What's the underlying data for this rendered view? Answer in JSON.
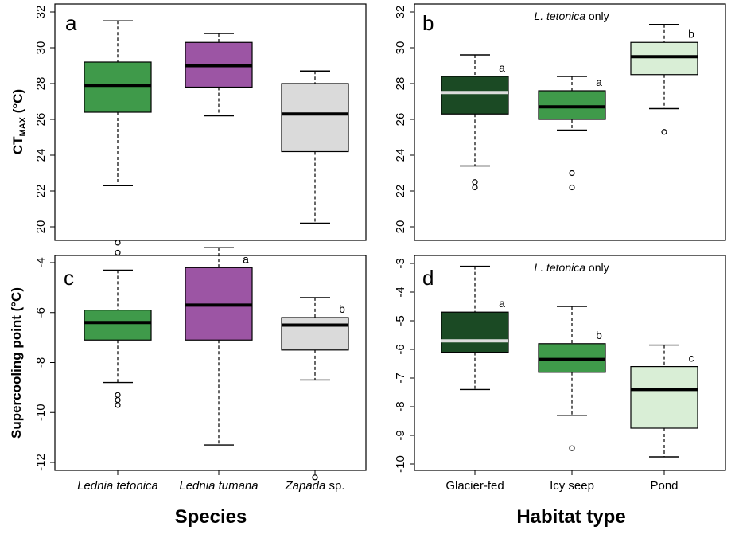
{
  "colors": {
    "lt": "#3f9a4a",
    "ltum": "#9c55a4",
    "zap": "#dadada",
    "glacier": "#1b4a24",
    "seep": "#3f9a4a",
    "pond": "#d9eed6",
    "median_dark": "#000000",
    "median_light": "#dddddd"
  },
  "shared": {
    "x_species_title": "Species",
    "x_habitat_title": "Habitat type",
    "species_labels": [
      {
        "italic": "Lednia tetonica",
        "plain": ""
      },
      {
        "italic": "Lednia tumana",
        "plain": ""
      },
      {
        "italic": "Zapada",
        "plain": " sp."
      }
    ],
    "habitat_labels": [
      "Glacier-fed",
      "Icy seep",
      "Pond"
    ],
    "ylabel_ct_main": "CT",
    "ylabel_ct_sub": "MAX",
    "ylabel_ct_unit": " (°C)",
    "ylabel_scp": "Supercooling point (°C)"
  },
  "chart_data": [
    {
      "panel": "a",
      "type": "box",
      "categories": [
        "Lednia tetonica",
        "Lednia tumana",
        "Zapada sp."
      ],
      "ylim": [
        19.5,
        32.2
      ],
      "yticks": [
        20,
        22,
        24,
        26,
        28,
        30,
        32
      ],
      "note_italic": "",
      "note_plain": "",
      "boxes": [
        {
          "low": 22.3,
          "q1": 26.4,
          "median": 27.9,
          "q3": 29.2,
          "high": 31.5,
          "outliers": [],
          "color_key": "lt",
          "median_key": "median_dark",
          "sig": ""
        },
        {
          "low": 26.2,
          "q1": 27.8,
          "median": 29.0,
          "q3": 30.3,
          "high": 30.8,
          "outliers": [],
          "color_key": "ltum",
          "median_key": "median_dark",
          "sig": ""
        },
        {
          "low": 20.2,
          "q1": 24.2,
          "median": 26.3,
          "q3": 28.0,
          "high": 28.7,
          "outliers": [],
          "color_key": "zap",
          "median_key": "median_dark",
          "sig": ""
        }
      ]
    },
    {
      "panel": "b",
      "type": "box",
      "categories": [
        "Glacier-fed",
        "Icy seep",
        "Pond"
      ],
      "ylim": [
        19.5,
        32.2
      ],
      "yticks": [
        20,
        22,
        24,
        26,
        28,
        30,
        32
      ],
      "note_italic": "L. tetonica",
      "note_plain": " only",
      "boxes": [
        {
          "low": 23.4,
          "q1": 26.3,
          "median": 27.5,
          "q3": 28.4,
          "high": 29.6,
          "outliers": [
            22.2,
            22.5
          ],
          "color_key": "glacier",
          "median_key": "median_light",
          "sig": "a"
        },
        {
          "low": 25.4,
          "q1": 26.0,
          "median": 26.7,
          "q3": 27.6,
          "high": 28.4,
          "outliers": [
            22.2,
            23.0
          ],
          "color_key": "seep",
          "median_key": "median_dark",
          "sig": "a"
        },
        {
          "low": 26.6,
          "q1": 28.5,
          "median": 29.5,
          "q3": 30.3,
          "high": 31.3,
          "outliers": [
            25.3
          ],
          "color_key": "pond",
          "median_key": "median_dark",
          "sig": "b"
        }
      ]
    },
    {
      "panel": "c",
      "type": "box",
      "categories": [
        "Lednia tetonica",
        "Lednia tumana",
        "Zapada sp."
      ],
      "ylim": [
        -13.0,
        -3.0
      ],
      "yticks": [
        -12,
        -10,
        -8,
        -6,
        -4
      ],
      "note_italic": "",
      "note_plain": "",
      "boxes": [
        {
          "low": -8.8,
          "q1": -7.1,
          "median": -6.4,
          "q3": -5.9,
          "high": -4.3,
          "outliers": [
            -3.2,
            -3.6,
            -9.3,
            -9.5,
            -9.7
          ],
          "color_key": "lt",
          "median_key": "median_dark",
          "sig": ""
        },
        {
          "low": -11.3,
          "q1": -7.1,
          "median": -5.7,
          "q3": -4.2,
          "high": -3.4,
          "outliers": [],
          "color_key": "ltum",
          "median_key": "median_dark",
          "sig": "a"
        },
        {
          "low": -8.7,
          "q1": -7.5,
          "median": -6.5,
          "q3": -6.2,
          "high": -5.4,
          "outliers": [
            -12.6
          ],
          "color_key": "zap",
          "median_key": "median_dark",
          "sig": "b"
        }
      ]
    },
    {
      "panel": "d",
      "type": "box",
      "categories": [
        "Glacier-fed",
        "Icy seep",
        "Pond"
      ],
      "ylim": [
        -10.0,
        -3.0
      ],
      "yticks": [
        -10,
        -9,
        -8,
        -7,
        -6,
        -5,
        -4,
        -3
      ],
      "note_italic": "L. tetonica",
      "note_plain": " only",
      "boxes": [
        {
          "low": -7.4,
          "q1": -6.1,
          "median": -5.7,
          "q3": -4.7,
          "high": -3.1,
          "outliers": [],
          "color_key": "glacier",
          "median_key": "median_light",
          "sig": "a"
        },
        {
          "low": -8.3,
          "q1": -6.8,
          "median": -6.35,
          "q3": -5.8,
          "high": -4.5,
          "outliers": [
            -9.45
          ],
          "color_key": "seep",
          "median_key": "median_dark",
          "sig": "b"
        },
        {
          "low": -9.75,
          "q1": -8.75,
          "median": -7.4,
          "q3": -6.6,
          "high": -5.85,
          "outliers": [],
          "color_key": "pond",
          "median_key": "median_dark",
          "sig": "c"
        }
      ]
    }
  ]
}
